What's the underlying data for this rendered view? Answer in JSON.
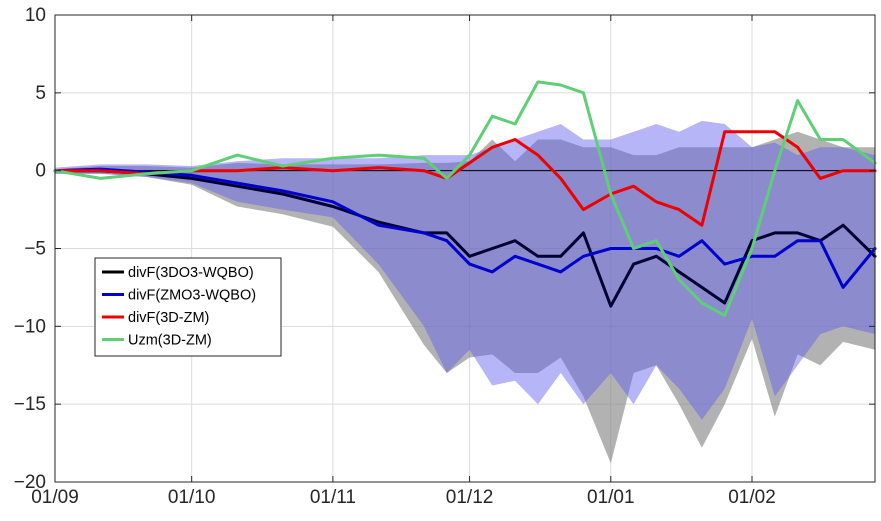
{
  "chart_data": {
    "type": "line",
    "title": "",
    "xlabel": "",
    "ylabel": "",
    "ylim": [
      -20,
      10
    ],
    "xlim": [
      "01/09",
      "28/02"
    ],
    "grid": true,
    "legend_position": "middle-left",
    "x_ticks": [
      {
        "label": "01/09",
        "date": "01/09"
      },
      {
        "label": "01/10",
        "date": "01/10"
      },
      {
        "label": "01/11",
        "date": "01/11"
      },
      {
        "label": "01/12",
        "date": "01/12"
      },
      {
        "label": "01/01",
        "date": "01/01"
      },
      {
        "label": "01/02",
        "date": "01/02"
      }
    ],
    "y_ticks": [
      10,
      5,
      0,
      -5,
      -10,
      -15,
      -20
    ],
    "zero_line": true,
    "bands": [
      {
        "color": "#7f7f7f",
        "opacity": 0.6,
        "points": [
          [
            "01/09",
            0.1,
            -0.2
          ],
          [
            "11/09",
            0.3,
            -0.2
          ],
          [
            "21/09",
            0.3,
            -0.4
          ],
          [
            "01/10",
            0.2,
            -0.9
          ],
          [
            "11/10",
            0.5,
            -2.3
          ],
          [
            "21/10",
            0.4,
            -2.8
          ],
          [
            "01/11",
            0.4,
            -3.6
          ],
          [
            "11/11",
            0.4,
            -6.5
          ],
          [
            "21/11",
            0.5,
            -11.2
          ],
          [
            "26/11",
            0.5,
            -13.0
          ],
          [
            "01/12",
            0.6,
            -12.0
          ],
          [
            "06/12",
            2.0,
            -11.8
          ],
          [
            "11/12",
            0.6,
            -13.0
          ],
          [
            "16/12",
            2.0,
            -13.0
          ],
          [
            "21/12",
            2.0,
            -12.0
          ],
          [
            "26/12",
            1.5,
            -14.5
          ],
          [
            "01/01",
            1.5,
            -18.8
          ],
          [
            "06/01",
            1.0,
            -13.0
          ],
          [
            "11/01",
            1.0,
            -12.5
          ],
          [
            "16/01",
            1.5,
            -15.0
          ],
          [
            "21/01",
            1.5,
            -17.8
          ],
          [
            "26/01",
            1.5,
            -15.0
          ],
          [
            "01/02",
            1.5,
            -10.8
          ],
          [
            "06/02",
            2.0,
            -15.8
          ],
          [
            "11/02",
            2.5,
            -11.8
          ],
          [
            "16/02",
            2.0,
            -12.5
          ],
          [
            "21/02",
            1.5,
            -11.0
          ],
          [
            "28/02",
            1.5,
            -11.5
          ]
        ]
      },
      {
        "color": "#5a5aef",
        "opacity": 0.45,
        "points": [
          [
            "01/09",
            0.2,
            -0.2
          ],
          [
            "11/09",
            0.4,
            -0.2
          ],
          [
            "21/09",
            0.4,
            -0.4
          ],
          [
            "01/10",
            0.3,
            -0.8
          ],
          [
            "11/10",
            0.6,
            -2.0
          ],
          [
            "21/10",
            0.8,
            -2.5
          ],
          [
            "01/11",
            0.8,
            -3.0
          ],
          [
            "11/11",
            0.8,
            -6.0
          ],
          [
            "21/11",
            1.0,
            -10.0
          ],
          [
            "26/11",
            1.0,
            -13.0
          ],
          [
            "01/12",
            1.0,
            -11.5
          ],
          [
            "06/12",
            1.5,
            -13.8
          ],
          [
            "11/12",
            2.0,
            -13.5
          ],
          [
            "16/12",
            2.5,
            -15.0
          ],
          [
            "21/12",
            3.0,
            -13.0
          ],
          [
            "26/12",
            2.0,
            -15.0
          ],
          [
            "01/01",
            2.0,
            -13.0
          ],
          [
            "06/01",
            2.5,
            -15.0
          ],
          [
            "11/01",
            3.0,
            -12.5
          ],
          [
            "16/01",
            2.5,
            -14.0
          ],
          [
            "21/01",
            3.2,
            -16.0
          ],
          [
            "26/01",
            3.0,
            -14.0
          ],
          [
            "01/02",
            1.5,
            -9.5
          ],
          [
            "06/02",
            1.8,
            -14.5
          ],
          [
            "11/02",
            1.0,
            -12.5
          ],
          [
            "16/02",
            1.5,
            -10.5
          ],
          [
            "21/02",
            1.5,
            -10.0
          ],
          [
            "28/02",
            1.0,
            -10.5
          ]
        ]
      }
    ],
    "series": [
      {
        "name": "divF(3DO3-WQBO)",
        "color": "#000033",
        "width": 3,
        "points": [
          [
            "01/09",
            0
          ],
          [
            "11/09",
            0
          ],
          [
            "21/09",
            -0.2
          ],
          [
            "01/10",
            -0.5
          ],
          [
            "11/10",
            -1.0
          ],
          [
            "21/10",
            -1.5
          ],
          [
            "01/11",
            -2.3
          ],
          [
            "11/11",
            -3.3
          ],
          [
            "21/11",
            -4.0
          ],
          [
            "26/11",
            -4.0
          ],
          [
            "01/12",
            -5.5
          ],
          [
            "06/12",
            -5.0
          ],
          [
            "11/12",
            -4.5
          ],
          [
            "16/12",
            -5.5
          ],
          [
            "21/12",
            -5.5
          ],
          [
            "26/12",
            -4.0
          ],
          [
            "01/01",
            -8.7
          ],
          [
            "06/01",
            -6.0
          ],
          [
            "11/01",
            -5.5
          ],
          [
            "16/01",
            -6.5
          ],
          [
            "21/01",
            -7.5
          ],
          [
            "26/01",
            -8.5
          ],
          [
            "01/02",
            -4.5
          ],
          [
            "06/02",
            -4.0
          ],
          [
            "11/02",
            -4.0
          ],
          [
            "16/02",
            -4.5
          ],
          [
            "21/02",
            -3.5
          ],
          [
            "28/02",
            -5.5
          ]
        ]
      },
      {
        "name": "divF(ZMO3-WQBO)",
        "color": "#0000cc",
        "width": 3,
        "points": [
          [
            "01/09",
            0
          ],
          [
            "11/09",
            0.1
          ],
          [
            "21/09",
            -0.1
          ],
          [
            "01/10",
            -0.3
          ],
          [
            "11/10",
            -0.8
          ],
          [
            "21/10",
            -1.3
          ],
          [
            "01/11",
            -2.0
          ],
          [
            "11/11",
            -3.5
          ],
          [
            "21/11",
            -4.0
          ],
          [
            "26/11",
            -4.5
          ],
          [
            "01/12",
            -6.0
          ],
          [
            "06/12",
            -6.5
          ],
          [
            "11/12",
            -5.5
          ],
          [
            "16/12",
            -6.0
          ],
          [
            "21/12",
            -6.5
          ],
          [
            "26/12",
            -5.5
          ],
          [
            "01/01",
            -5.0
          ],
          [
            "06/01",
            -5.0
          ],
          [
            "11/01",
            -5.0
          ],
          [
            "16/01",
            -5.5
          ],
          [
            "21/01",
            -4.5
          ],
          [
            "26/01",
            -6.0
          ],
          [
            "01/02",
            -5.5
          ],
          [
            "06/02",
            -5.5
          ],
          [
            "11/02",
            -4.5
          ],
          [
            "16/02",
            -4.5
          ],
          [
            "21/02",
            -7.5
          ],
          [
            "28/02",
            -5.0
          ]
        ]
      },
      {
        "name": "divF(3D-ZM)",
        "color": "#ee0000",
        "width": 3,
        "points": [
          [
            "01/09",
            0
          ],
          [
            "11/09",
            0
          ],
          [
            "21/09",
            -0.2
          ],
          [
            "01/10",
            0
          ],
          [
            "11/10",
            0
          ],
          [
            "21/10",
            0.2
          ],
          [
            "01/11",
            0
          ],
          [
            "11/11",
            0.2
          ],
          [
            "21/11",
            0
          ],
          [
            "26/11",
            -0.5
          ],
          [
            "01/12",
            0.5
          ],
          [
            "06/12",
            1.5
          ],
          [
            "11/12",
            2.0
          ],
          [
            "16/12",
            1.0
          ],
          [
            "21/12",
            -0.5
          ],
          [
            "26/12",
            -2.5
          ],
          [
            "01/01",
            -1.5
          ],
          [
            "06/01",
            -1.0
          ],
          [
            "11/01",
            -2.0
          ],
          [
            "16/01",
            -2.5
          ],
          [
            "21/01",
            -3.5
          ],
          [
            "26/01",
            2.5
          ],
          [
            "01/02",
            2.5
          ],
          [
            "06/02",
            2.5
          ],
          [
            "11/02",
            1.5
          ],
          [
            "16/02",
            -0.5
          ],
          [
            "21/02",
            0
          ],
          [
            "28/02",
            0
          ]
        ]
      },
      {
        "name": "Uzm(3D-ZM)",
        "color": "#5fcf76",
        "width": 3,
        "points": [
          [
            "01/09",
            0
          ],
          [
            "11/09",
            -0.5
          ],
          [
            "21/09",
            -0.2
          ],
          [
            "01/10",
            0
          ],
          [
            "11/10",
            1.0
          ],
          [
            "21/10",
            0.3
          ],
          [
            "01/11",
            0.8
          ],
          [
            "11/11",
            1.0
          ],
          [
            "21/11",
            0.8
          ],
          [
            "26/11",
            -0.5
          ],
          [
            "01/12",
            1.0
          ],
          [
            "06/12",
            3.5
          ],
          [
            "11/12",
            3.0
          ],
          [
            "16/12",
            5.7
          ],
          [
            "21/12",
            5.5
          ],
          [
            "26/12",
            5.0
          ],
          [
            "01/01",
            -1.5
          ],
          [
            "06/01",
            -5.0
          ],
          [
            "11/01",
            -4.5
          ],
          [
            "16/01",
            -7.0
          ],
          [
            "21/01",
            -8.5
          ],
          [
            "26/01",
            -9.3
          ],
          [
            "01/02",
            -5.0
          ],
          [
            "06/02",
            0
          ],
          [
            "11/02",
            4.5
          ],
          [
            "16/02",
            2.0
          ],
          [
            "21/02",
            2.0
          ],
          [
            "28/02",
            0.5
          ]
        ]
      }
    ],
    "legend": [
      {
        "label": "divF(3DO3-WQBO)",
        "color": "#000000"
      },
      {
        "label": "divF(ZMO3-WQBO)",
        "color": "#0000cc"
      },
      {
        "label": "divF(3D-ZM)",
        "color": "#ee0000"
      },
      {
        "label": "Uzm(3D-ZM)",
        "color": "#5fcf76"
      }
    ]
  }
}
